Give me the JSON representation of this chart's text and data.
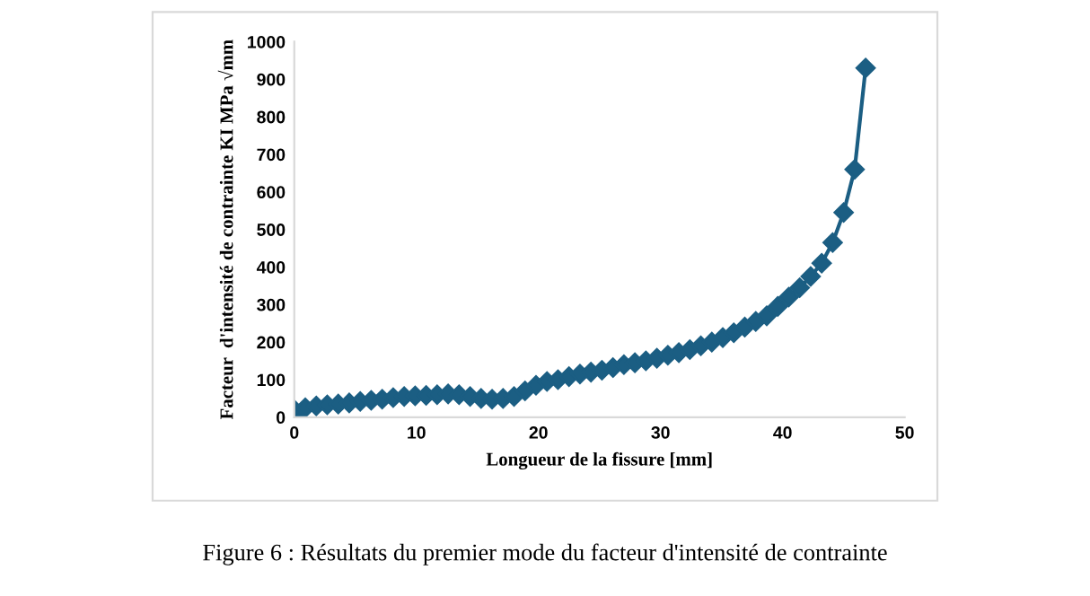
{
  "chart_data": {
    "type": "line",
    "xlabel": "Longueur de la fissure [mm]",
    "ylabel": "Facteur  d'intensité de contrainte KI MPa √mm",
    "x": [
      0,
      0,
      0.9,
      1.8,
      2.7,
      3.6,
      4.5,
      5.4,
      6.3,
      7.2,
      8.1,
      9,
      9.9,
      10.8,
      11.7,
      12.6,
      13.5,
      14.4,
      15.3,
      16.2,
      17.1,
      18,
      18.9,
      19.8,
      20.7,
      21.6,
      22.5,
      23.4,
      24.3,
      25.2,
      26.1,
      27,
      27.9,
      28.8,
      29.7,
      30.6,
      31.5,
      32.4,
      33.3,
      34.2,
      35.1,
      36,
      36.9,
      37.8,
      38.7,
      39.6,
      40.5,
      41.4,
      42.3,
      43.2,
      44.1,
      45,
      45.9,
      46.8
    ],
    "series": [
      {
        "color": "#1b5e83",
        "values": [
          0,
          20,
          25,
          30,
          33,
          35,
          38,
          42,
          45,
          48,
          52,
          55,
          57,
          58,
          60,
          62,
          60,
          55,
          50,
          48,
          50,
          55,
          70,
          85,
          95,
          100,
          108,
          115,
          120,
          125,
          132,
          140,
          145,
          150,
          157,
          165,
          172,
          180,
          190,
          200,
          212,
          225,
          240,
          255,
          270,
          295,
          320,
          345,
          375,
          410,
          465,
          545,
          660,
          930
        ]
      }
    ],
    "marker": "diamond",
    "line_style": "solid",
    "grid": false,
    "xlim": [
      0,
      50
    ],
    "xticks": [
      0,
      10,
      20,
      30,
      40,
      50
    ],
    "ylim": [
      0,
      1000
    ],
    "yticks": [
      0,
      100,
      200,
      300,
      400,
      500,
      600,
      700,
      800,
      900,
      1000
    ],
    "annotations": [
      "Figure 6 : Résultats du premier mode du facteur d'intensité de contrainte"
    ]
  }
}
